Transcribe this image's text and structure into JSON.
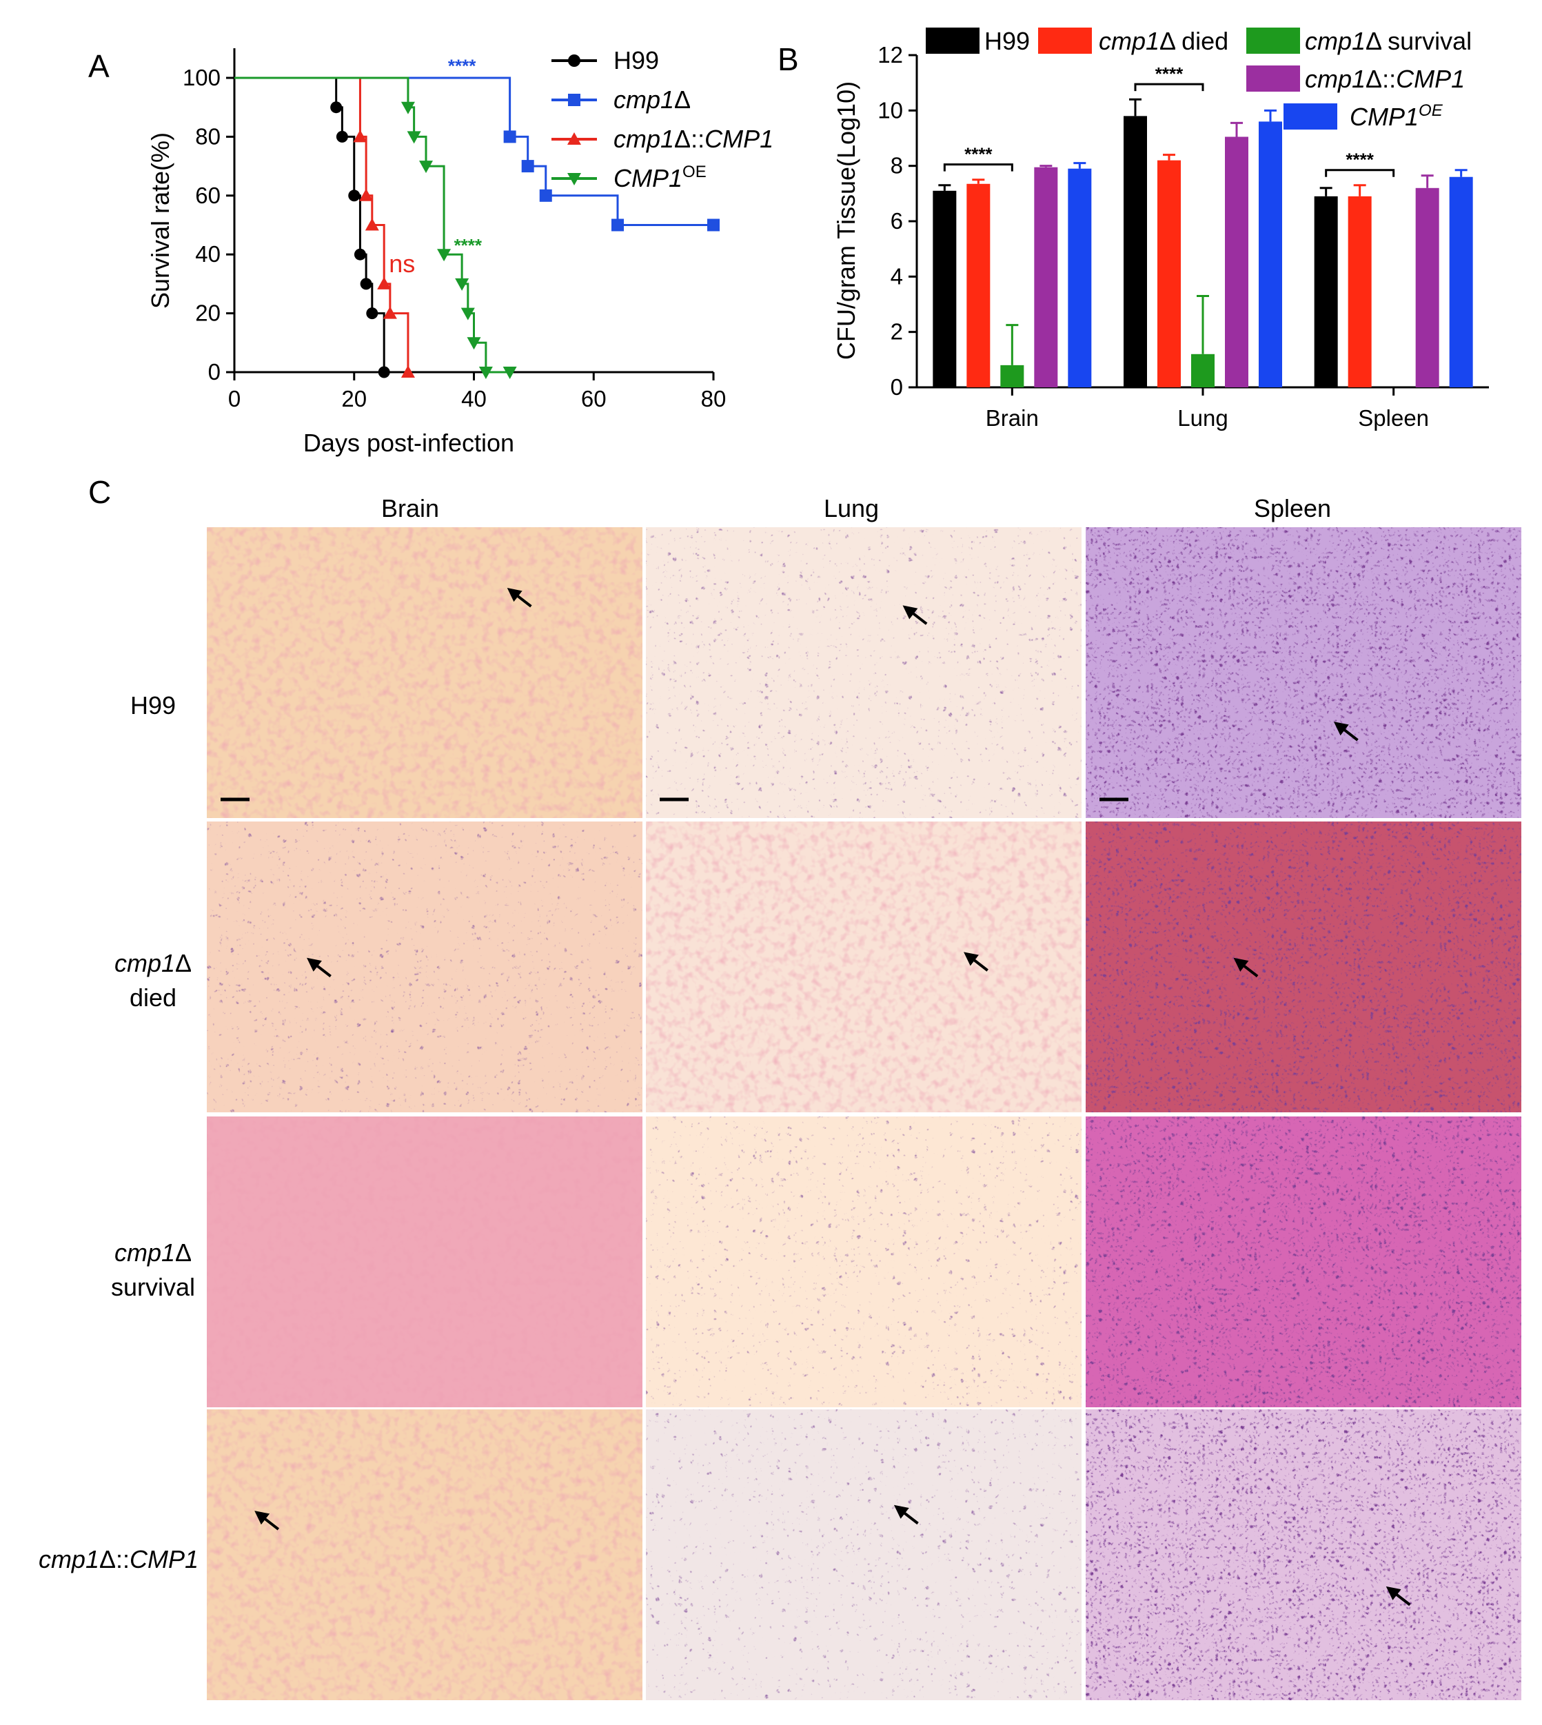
{
  "panel_labels": {
    "a": "A",
    "b": "B",
    "c": "C"
  },
  "chart_data": [
    {
      "type": "line",
      "panel": "A",
      "step": true,
      "xlabel": "Days post-infection",
      "ylabel": "Survival rate(%)",
      "xlim": [
        0,
        80
      ],
      "ylim": [
        0,
        100
      ],
      "xticks": [
        "0",
        "20",
        "40",
        "60",
        "80"
      ],
      "yticks": [
        "0",
        "20",
        "40",
        "60",
        "80",
        "100"
      ],
      "legend_position": "top-right",
      "series": [
        {
          "name": "H99",
          "color": "#000000",
          "marker": "circle",
          "x": [
            0,
            17,
            18,
            20,
            21,
            22,
            23,
            25
          ],
          "y": [
            100,
            90,
            80,
            60,
            40,
            30,
            20,
            0
          ]
        },
        {
          "name": "cmp1Δ",
          "color": "#1f4fe0",
          "marker": "square",
          "x": [
            0,
            46,
            49,
            52,
            64,
            80
          ],
          "y": [
            100,
            80,
            70,
            60,
            50,
            50
          ]
        },
        {
          "name": "cmp1Δ::CMP1",
          "color": "#e8281e",
          "marker": "triangle-up",
          "x": [
            0,
            21,
            22,
            23,
            25,
            26,
            29
          ],
          "y": [
            100,
            80,
            60,
            50,
            30,
            20,
            0
          ]
        },
        {
          "name": "CMP1OE",
          "color": "#1a9a2a",
          "marker": "triangle-down",
          "x": [
            0,
            29,
            30,
            32,
            35,
            38,
            39,
            40,
            42,
            46
          ],
          "y": [
            100,
            90,
            80,
            70,
            40,
            30,
            20,
            10,
            0,
            0
          ]
        }
      ],
      "annotations": [
        {
          "text": "****",
          "color": "#1f4fe0",
          "x": 38,
          "y": 102
        },
        {
          "text": "****",
          "color": "#1a9a2a",
          "x": 39,
          "y": 41
        },
        {
          "text": "ns",
          "color": "#e8281e",
          "x": 28,
          "y": 34
        }
      ]
    },
    {
      "type": "bar",
      "panel": "B",
      "ylabel": "CFU/gram Tissue(Log10)",
      "ylim": [
        0,
        12
      ],
      "yticks": [
        "0",
        "2",
        "4",
        "6",
        "8",
        "10",
        "12"
      ],
      "categories": [
        "Brain",
        "Lung",
        "Spleen"
      ],
      "legend_position": "top",
      "series": [
        {
          "name": "H99",
          "color": "#000000",
          "values": [
            7.1,
            9.8,
            6.9
          ],
          "errors": [
            0.2,
            0.6,
            0.3
          ]
        },
        {
          "name": "cmp1Δ died",
          "color": "#ff2a12",
          "values": [
            7.35,
            8.2,
            6.9
          ],
          "errors": [
            0.15,
            0.2,
            0.4
          ]
        },
        {
          "name": "cmp1Δ survival",
          "color": "#1e9a1e",
          "values": [
            0.8,
            1.2,
            0.0
          ],
          "errors": [
            1.45,
            2.1,
            0.0
          ]
        },
        {
          "name": "cmp1Δ::CMP1",
          "color": "#9b2fa0",
          "values": [
            7.95,
            9.05,
            7.2
          ],
          "errors": [
            0.05,
            0.5,
            0.45
          ]
        },
        {
          "name": "CMP1OE",
          "color": "#1846f0",
          "values": [
            7.9,
            9.6,
            7.6
          ],
          "errors": [
            0.2,
            0.4,
            0.25
          ]
        }
      ],
      "annotations": [
        {
          "text": "****",
          "category": "Brain"
        },
        {
          "text": "****",
          "category": "Lung"
        },
        {
          "text": "****",
          "category": "Spleen"
        }
      ]
    }
  ],
  "panel_a": {
    "legend": [
      {
        "pre": "H99",
        "ital": "",
        "post": "",
        "sup": ""
      },
      {
        "pre": "",
        "ital": "cmp1",
        "post": "Δ",
        "sup": ""
      },
      {
        "pre": "",
        "ital": "cmp1",
        "post": "Δ::",
        "ital2": "CMP1",
        "sup": ""
      },
      {
        "pre": "",
        "ital": "CMP1",
        "post": "",
        "sup": "OE"
      }
    ]
  },
  "panel_c": {
    "columns": [
      "Brain",
      "Lung",
      "Spleen"
    ],
    "rows": [
      {
        "line1_ital": "",
        "line1": "H99",
        "line2": ""
      },
      {
        "line1_ital": "cmp1",
        "line1": "Δ",
        "line2": "died"
      },
      {
        "line1_ital": "cmp1",
        "line1": "Δ",
        "line2": "survival"
      },
      {
        "line1_ital": "cmp1",
        "line1": "Δ::",
        "line1_ital2": "CMP1",
        "line2": ""
      }
    ]
  }
}
